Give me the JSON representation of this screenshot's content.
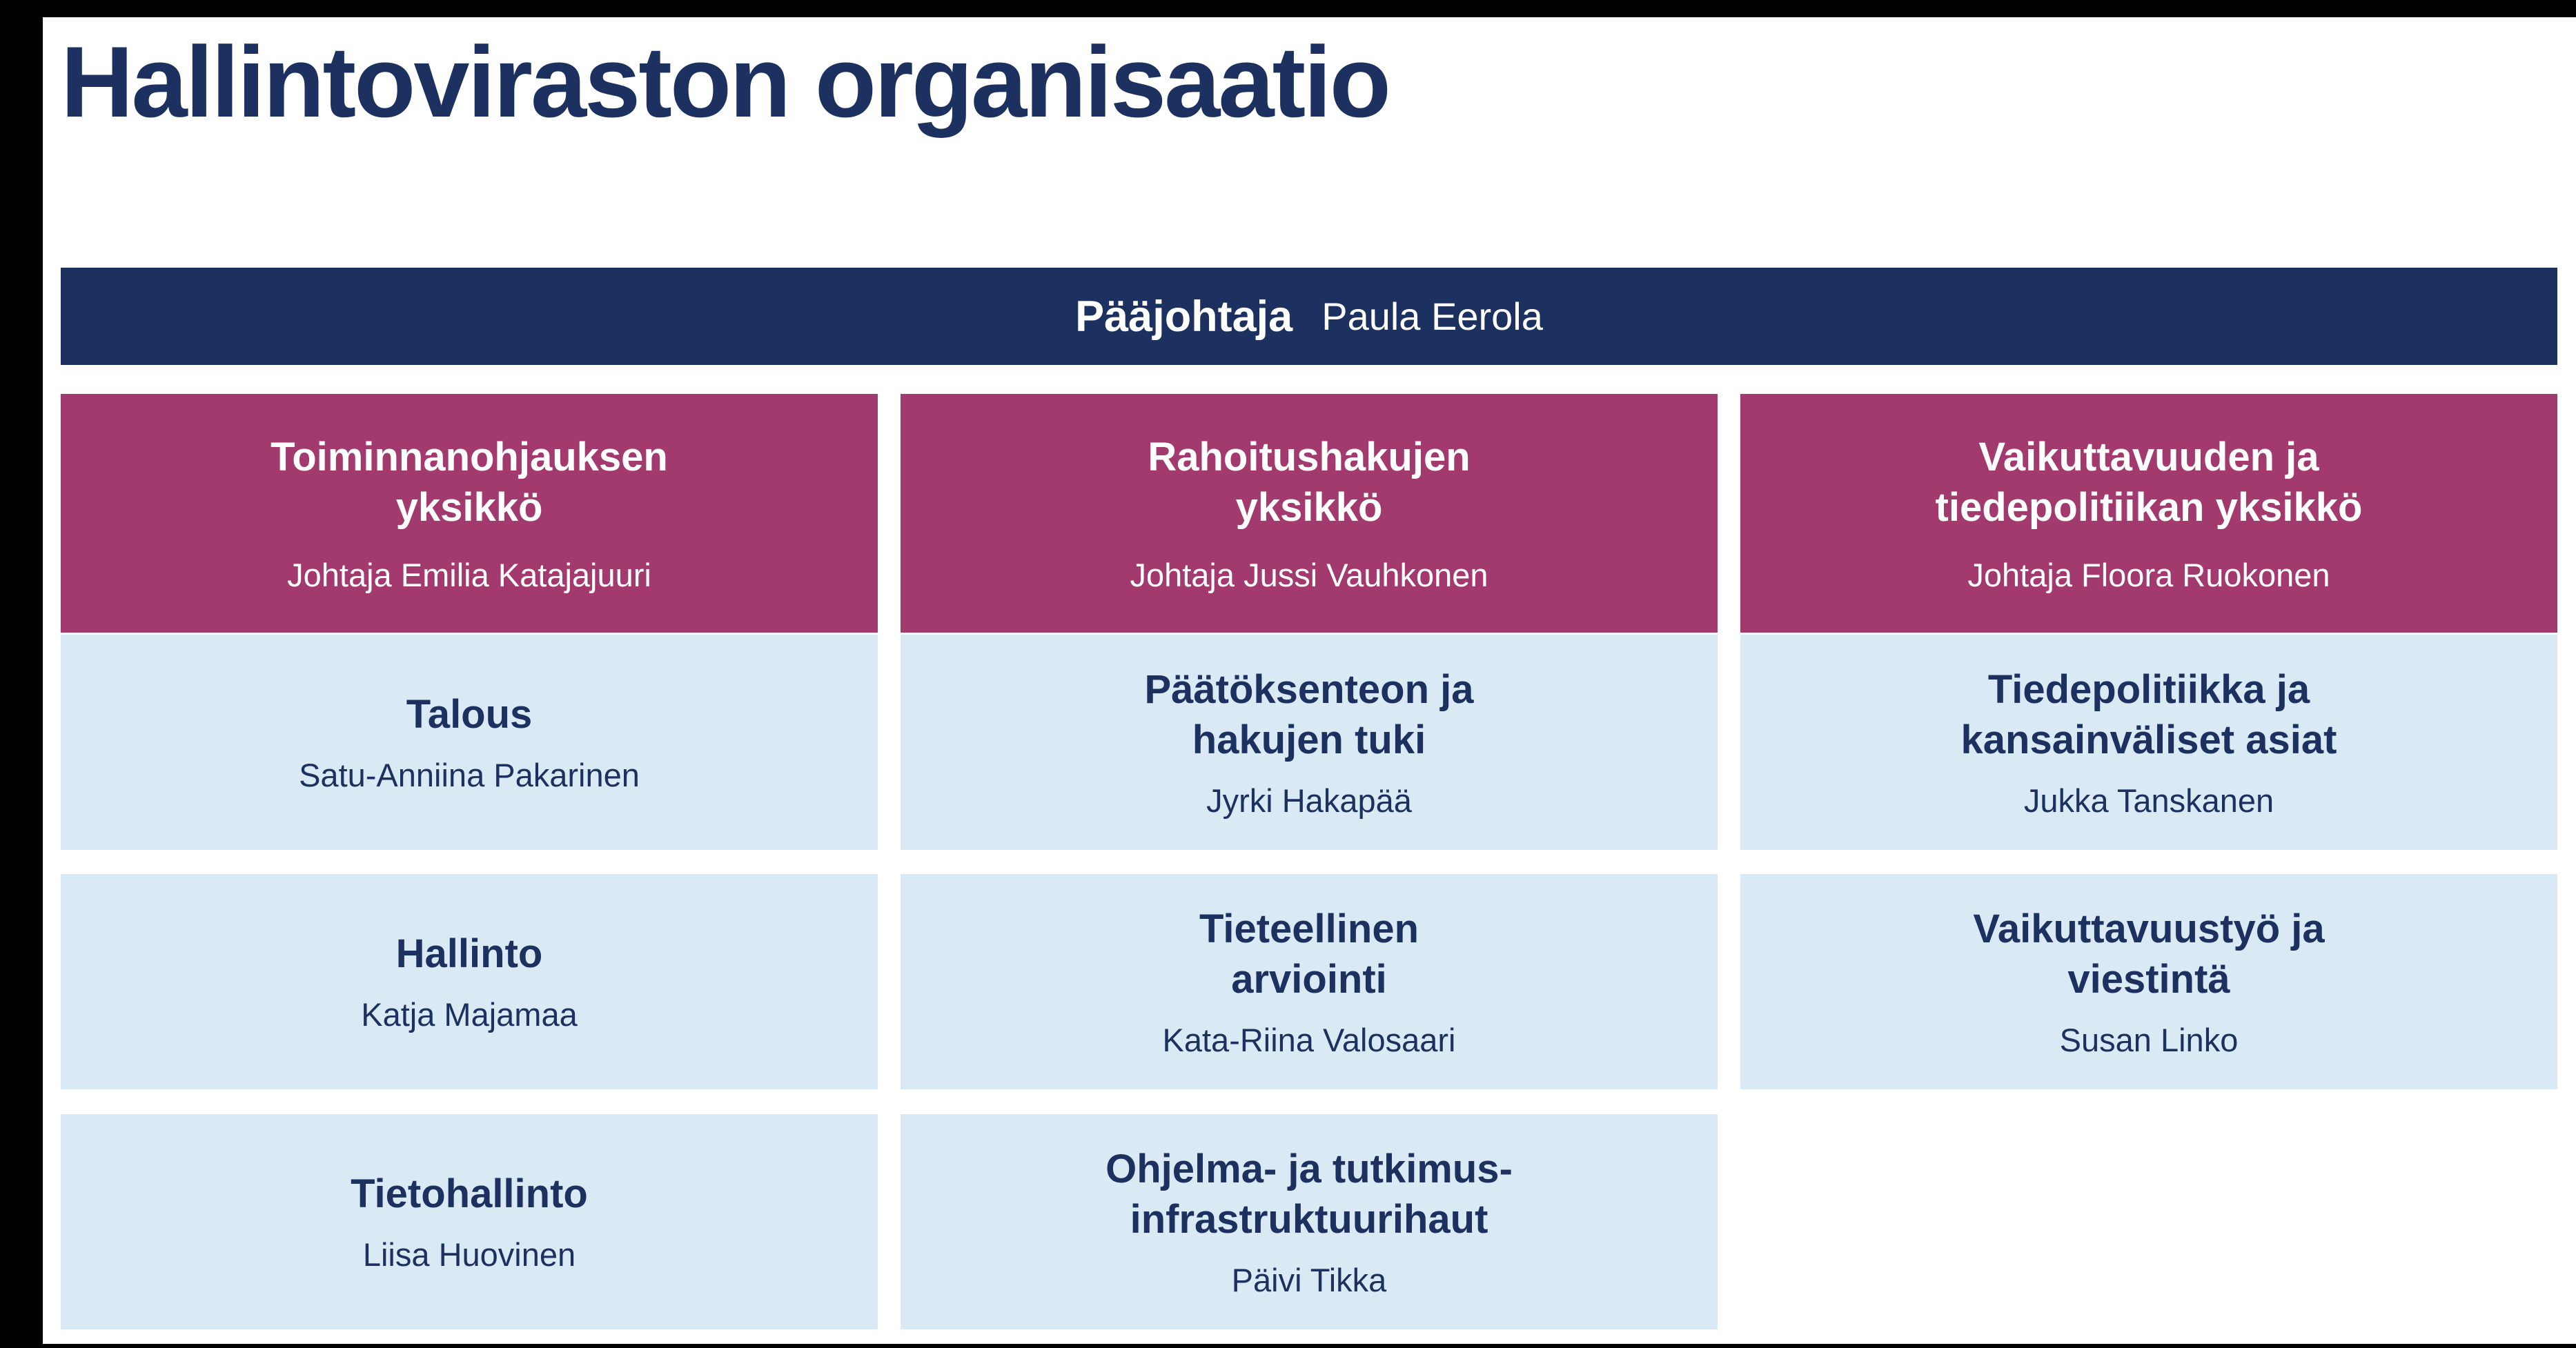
{
  "page": {
    "title": "Hallintoviraston organisaatio"
  },
  "director": {
    "role": "Pääjohtaja",
    "name": "Paula Eerola"
  },
  "units": [
    {
      "title": "Toiminnanohjauksen\nyksikkö",
      "lead": "Johtaja Emilia Katajajuuri",
      "teams": [
        {
          "title": "Talous",
          "lead": "Satu-Anniina Pakarinen"
        },
        {
          "title": "Hallinto",
          "lead": "Katja Majamaa"
        },
        {
          "title": "Tietohallinto",
          "lead": "Liisa Huovinen"
        }
      ]
    },
    {
      "title": "Rahoitushakujen\nyksikkö",
      "lead": "Johtaja Jussi Vauhkonen",
      "teams": [
        {
          "title": "Päätöksenteon ja\nhakujen tuki",
          "lead": "Jyrki Hakapää"
        },
        {
          "title": "Tieteellinen\narviointi",
          "lead": "Kata-Riina Valosaari"
        },
        {
          "title": "Ohjelma- ja tutkimus-\ninfrastruktuurihaut",
          "lead": "Päivi Tikka"
        }
      ]
    },
    {
      "title": "Vaikuttavuuden ja\ntiedepolitiikan yksikkö",
      "lead": "Johtaja Floora Ruokonen",
      "teams": [
        {
          "title": "Tiedepolitiikka ja\nkansainväliset asiat",
          "lead": "Jukka Tanskanen"
        },
        {
          "title": "Vaikuttavuustyö ja\nviestintä",
          "lead": "Susan Linko"
        }
      ]
    }
  ],
  "colors": {
    "navy": "#1C3160",
    "magenta": "#A23A6E",
    "light_blue": "#DAEAF5",
    "frame_black": "#000000"
  }
}
